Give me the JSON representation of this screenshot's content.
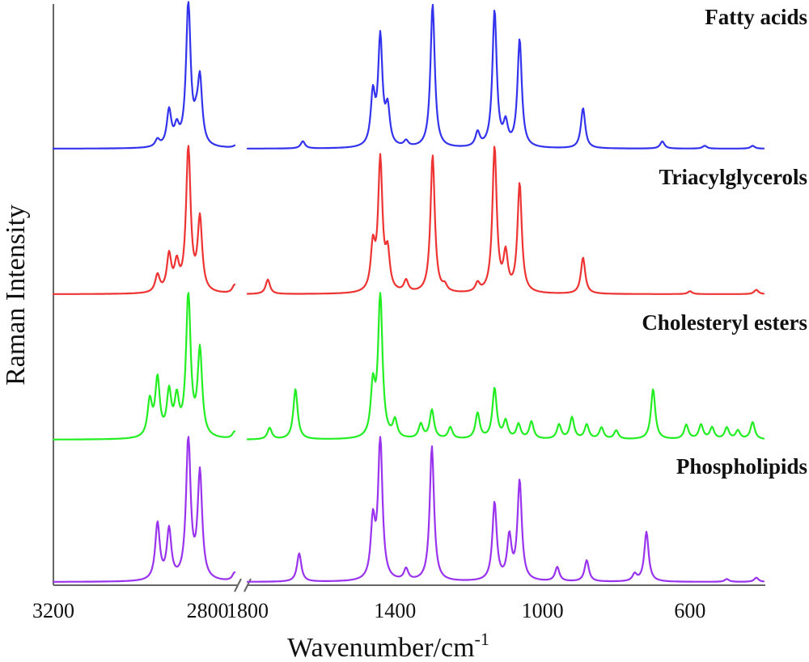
{
  "chart_data": {
    "type": "line",
    "title": "",
    "xlabel": "Wavenumber/cm",
    "xlabel_superscript": "-1",
    "ylabel": "Raman Intensity",
    "x_axis": {
      "direction": "reversed",
      "broken": true,
      "segments": [
        {
          "range": [
            3200,
            2730
          ],
          "ticks": [
            3200,
            2800
          ]
        },
        {
          "range": [
            1800,
            400
          ],
          "ticks": [
            1800,
            1400,
            1000,
            600
          ]
        }
      ],
      "tick_labels": [
        "3200",
        "2800",
        "1800",
        "1400",
        "1000",
        "600"
      ]
    },
    "y_axis": {
      "ticks": false,
      "units": "arbitrary, stacked offsets"
    },
    "series": [
      {
        "name": "Fatty acids",
        "color": "#3333ee",
        "baseline": 0.0,
        "high_wavenumber_peaks": [
          [
            2930,
            0.05
          ],
          [
            2900,
            0.25
          ],
          [
            2880,
            0.12
          ],
          [
            2850,
            1.0
          ],
          [
            2830,
            0.1
          ],
          [
            2820,
            0.45
          ],
          [
            2720,
            0.05
          ]
        ],
        "fingerprint_peaks": [
          [
            1650,
            0.05
          ],
          [
            1460,
            0.35
          ],
          [
            1440,
            0.75
          ],
          [
            1420,
            0.25
          ],
          [
            1370,
            0.04
          ],
          [
            1298,
            1.0
          ],
          [
            1176,
            0.1
          ],
          [
            1130,
            0.95
          ],
          [
            1100,
            0.15
          ],
          [
            1062,
            0.75
          ],
          [
            890,
            0.28
          ],
          [
            675,
            0.05
          ],
          [
            560,
            0.02
          ],
          [
            430,
            0.02
          ]
        ]
      },
      {
        "name": "Triacylglycerols",
        "color": "#ee3333",
        "baseline": 0.0,
        "high_wavenumber_peaks": [
          [
            2930,
            0.12
          ],
          [
            2900,
            0.25
          ],
          [
            2880,
            0.18
          ],
          [
            2850,
            1.0
          ],
          [
            2820,
            0.5
          ],
          [
            2730,
            0.06
          ]
        ],
        "fingerprint_peaks": [
          [
            1745,
            0.1
          ],
          [
            1460,
            0.3
          ],
          [
            1440,
            0.9
          ],
          [
            1420,
            0.25
          ],
          [
            1370,
            0.08
          ],
          [
            1298,
            0.95
          ],
          [
            1265,
            0.04
          ],
          [
            1176,
            0.06
          ],
          [
            1130,
            1.0
          ],
          [
            1100,
            0.25
          ],
          [
            1062,
            0.75
          ],
          [
            890,
            0.25
          ],
          [
            600,
            0.02
          ],
          [
            420,
            0.03
          ]
        ]
      },
      {
        "name": "Cholesteryl esters",
        "color": "#22ee22",
        "baseline": 0.0,
        "high_wavenumber_peaks": [
          [
            2950,
            0.25
          ],
          [
            2930,
            0.4
          ],
          [
            2900,
            0.3
          ],
          [
            2880,
            0.25
          ],
          [
            2850,
            1.0
          ],
          [
            2820,
            0.6
          ],
          [
            2730,
            0.05
          ]
        ],
        "fingerprint_peaks": [
          [
            1740,
            0.08
          ],
          [
            1670,
            0.35
          ],
          [
            1460,
            0.35
          ],
          [
            1440,
            1.0
          ],
          [
            1400,
            0.12
          ],
          [
            1330,
            0.1
          ],
          [
            1300,
            0.2
          ],
          [
            1250,
            0.08
          ],
          [
            1176,
            0.18
          ],
          [
            1130,
            0.35
          ],
          [
            1100,
            0.12
          ],
          [
            1065,
            0.1
          ],
          [
            1030,
            0.12
          ],
          [
            955,
            0.1
          ],
          [
            920,
            0.15
          ],
          [
            880,
            0.1
          ],
          [
            840,
            0.08
          ],
          [
            800,
            0.06
          ],
          [
            700,
            0.35
          ],
          [
            610,
            0.1
          ],
          [
            570,
            0.1
          ],
          [
            540,
            0.08
          ],
          [
            500,
            0.08
          ],
          [
            470,
            0.06
          ],
          [
            430,
            0.12
          ]
        ]
      },
      {
        "name": "Phospholipids",
        "color": "#9933ee",
        "baseline": 0.0,
        "high_wavenumber_peaks": [
          [
            2930,
            0.4
          ],
          [
            2900,
            0.35
          ],
          [
            2850,
            1.0
          ],
          [
            2820,
            0.75
          ],
          [
            2730,
            0.06
          ]
        ],
        "fingerprint_peaks": [
          [
            1660,
            0.2
          ],
          [
            1460,
            0.4
          ],
          [
            1440,
            1.0
          ],
          [
            1370,
            0.08
          ],
          [
            1300,
            0.95
          ],
          [
            1130,
            0.55
          ],
          [
            1090,
            0.3
          ],
          [
            1062,
            0.7
          ],
          [
            960,
            0.1
          ],
          [
            880,
            0.15
          ],
          [
            750,
            0.05
          ],
          [
            718,
            0.35
          ],
          [
            500,
            0.02
          ],
          [
            420,
            0.03
          ]
        ]
      }
    ],
    "legend": "text labels at top-right of each trace"
  }
}
